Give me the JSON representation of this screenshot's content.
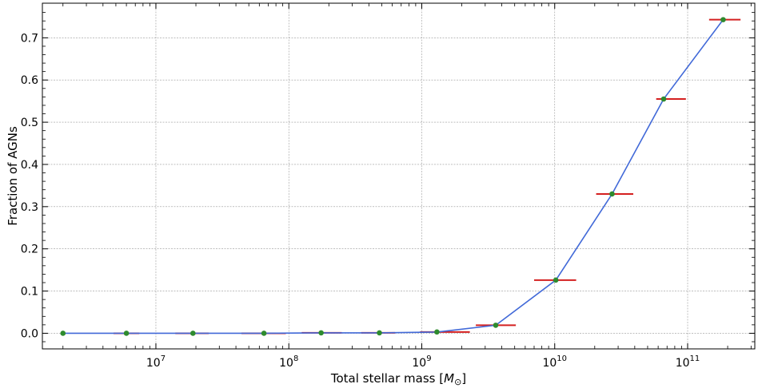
{
  "chart_data": {
    "type": "line",
    "xlabel": "Total stellar mass [M⊙]",
    "xlabel_main": "Total stellar mass [",
    "xlabel_symbol": "M",
    "xlabel_sub": "⊙",
    "xlabel_end": "]",
    "ylabel": "Fraction of AGNs",
    "xscale": "log",
    "xlim": [
      1400000.0,
      320000000000.0
    ],
    "ylim": [
      -0.037,
      0.782
    ],
    "grid": true,
    "x_ticks": [
      {
        "value": 10000000.0,
        "base": "10",
        "exp": "7"
      },
      {
        "value": 100000000.0,
        "base": "10",
        "exp": "8"
      },
      {
        "value": 1000000000.0,
        "base": "10",
        "exp": "9"
      },
      {
        "value": 10000000000.0,
        "base": "10",
        "exp": "10"
      },
      {
        "value": 100000000000.0,
        "base": "10",
        "exp": "11"
      }
    ],
    "y_ticks": [
      {
        "value": 0.0,
        "label": "0.0"
      },
      {
        "value": 0.1,
        "label": "0.1"
      },
      {
        "value": 0.2,
        "label": "0.2"
      },
      {
        "value": 0.3,
        "label": "0.3"
      },
      {
        "value": 0.4,
        "label": "0.4"
      },
      {
        "value": 0.5,
        "label": "0.5"
      },
      {
        "value": 0.6,
        "label": "0.6"
      },
      {
        "value": 0.7,
        "label": "0.7"
      }
    ],
    "series": [
      {
        "x": [
          2000000.0,
          6000000.0,
          19000000.0,
          65000000.0,
          175000000.0,
          480000000.0,
          1300000000.0,
          3600000000.0,
          10200000000.0,
          27000000000.0,
          66000000000.0,
          185000000000.0
        ],
        "y": [
          0.0,
          0.0,
          0.0,
          0.0,
          0.001,
          0.001,
          0.003,
          0.019,
          0.126,
          0.33,
          0.555,
          0.743
        ],
        "x_err_low": [
          null,
          4800000.0,
          14000000.0,
          44000000.0,
          125000000.0,
          350000000.0,
          970000000.0,
          2550000000.0,
          7000000000.0,
          20500000000.0,
          58000000000.0,
          145000000000.0
        ],
        "x_err_high": [
          null,
          7500000.0,
          25000000.0,
          95000000.0,
          250000000.0,
          630000000.0,
          2300000000.0,
          5100000000.0,
          14500000000.0,
          39000000000.0,
          97000000000.0,
          250000000000.0
        ],
        "line_color": "#4169d8",
        "marker_color": "#2e8b2e",
        "errbar_color": "#d42020"
      }
    ]
  }
}
